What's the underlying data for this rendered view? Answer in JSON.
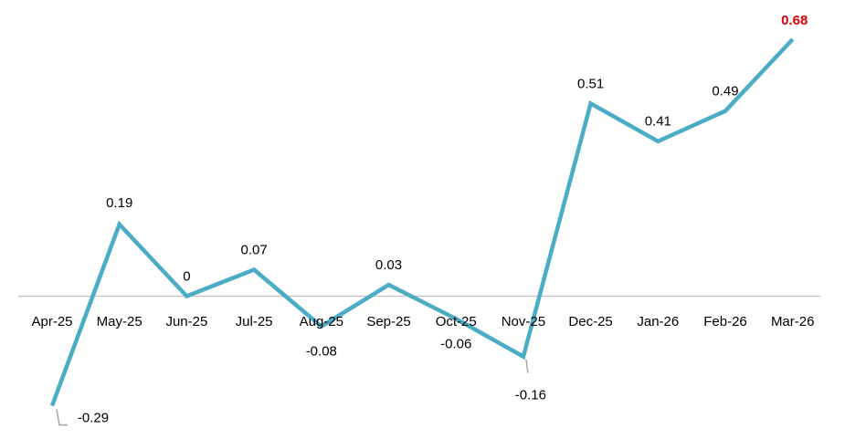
{
  "chart_data": {
    "type": "line",
    "categories": [
      "Apr-25",
      "May-25",
      "Jun-25",
      "Jul-25",
      "Aug-25",
      "Sep-25",
      "Oct-25",
      "Nov-25",
      "Dec-25",
      "Jan-26",
      "Feb-26",
      "Mar-26"
    ],
    "series": [
      {
        "values": [
          -0.29,
          0.19,
          0,
          0.07,
          -0.08,
          0.03,
          -0.06,
          -0.16,
          0.51,
          0.41,
          0.49,
          0.68
        ],
        "labels": [
          "-0.29",
          "0.19",
          "0",
          "0.07",
          "-0.08",
          "0.03",
          "-0.06",
          "-0.16",
          "0.51",
          "0.41",
          "0.49",
          "0.68"
        ]
      }
    ],
    "title": "",
    "xlabel": "",
    "ylabel": "",
    "highlighted_label_index": 11,
    "grid": false,
    "legend": "none",
    "colors": {
      "line": "#4bacc6",
      "axis": "#bfbfbf",
      "leader": "#a6a6a6",
      "highlight_label": "#e00000",
      "label": "#000000"
    }
  }
}
